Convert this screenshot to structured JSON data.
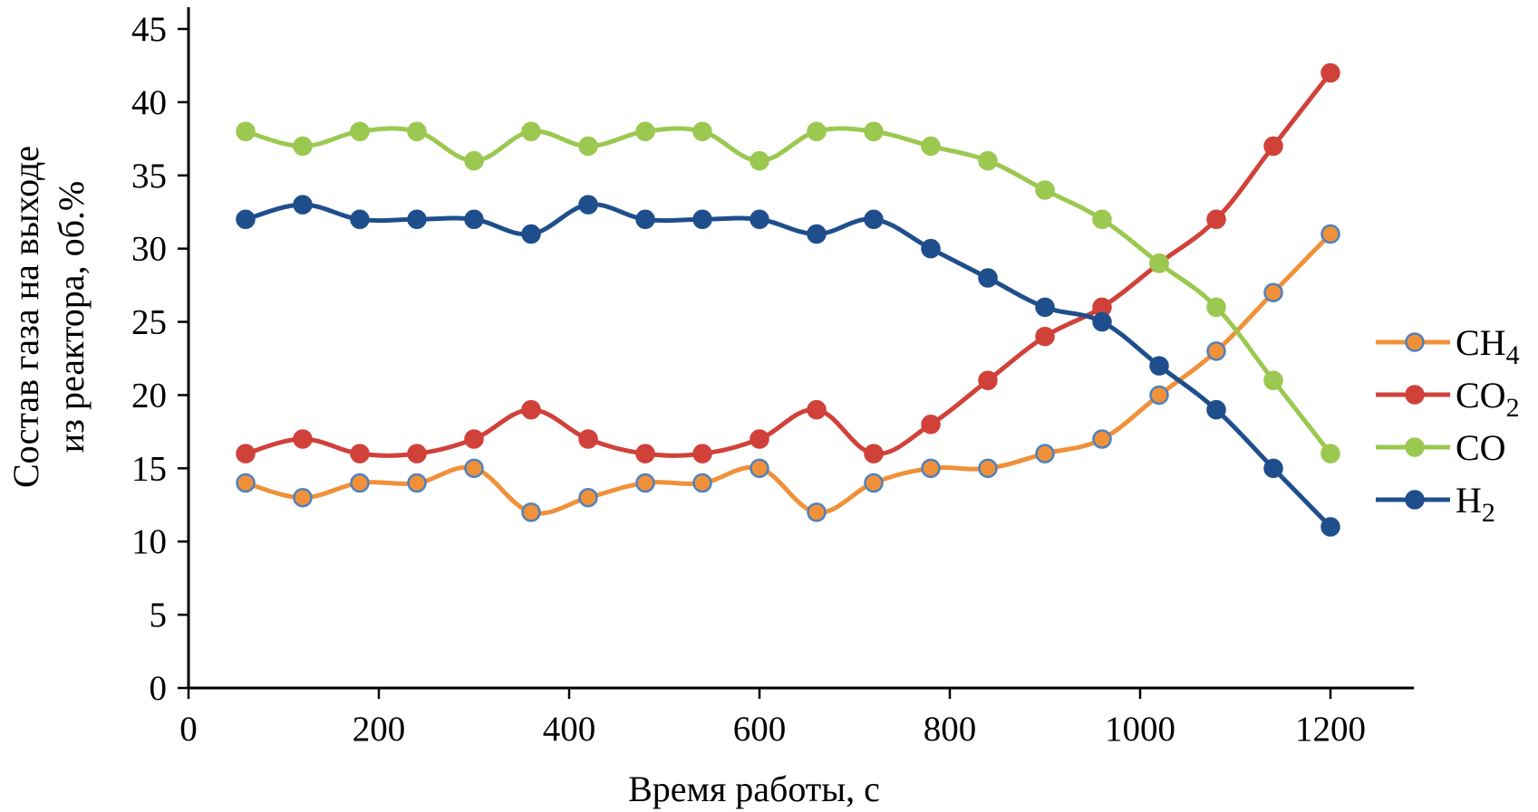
{
  "chart_data": {
    "type": "line",
    "title": "",
    "xlabel": "Время работы, с",
    "ylabel": [
      "Состав газа на выходе",
      "из реактора, об.%"
    ],
    "xlim": [
      0,
      1300
    ],
    "ylim": [
      0,
      45
    ],
    "xticks": [
      0,
      200,
      400,
      600,
      800,
      1000,
      1200
    ],
    "yticks": [
      0,
      5,
      10,
      15,
      20,
      25,
      30,
      35,
      40,
      45
    ],
    "grid": false,
    "legend_position": "right",
    "x": [
      60,
      120,
      180,
      240,
      300,
      360,
      420,
      480,
      540,
      600,
      660,
      720,
      780,
      840,
      900,
      960,
      1020,
      1080,
      1140,
      1200
    ],
    "series": [
      {
        "name": "CH",
        "subscript": "4",
        "color": "#f0913a",
        "marker_edge": "#4f81bd",
        "values": [
          14,
          13,
          14,
          14,
          15,
          12,
          13,
          14,
          14,
          15,
          12,
          14,
          15,
          15,
          16,
          17,
          20,
          23,
          27,
          31
        ]
      },
      {
        "name": "CO",
        "subscript": "2",
        "color": "#d0413a",
        "marker_edge": "#d0413a",
        "values": [
          16,
          17,
          16,
          16,
          17,
          19,
          17,
          16,
          16,
          17,
          19,
          16,
          18,
          21,
          24,
          26,
          29,
          32,
          37,
          42
        ]
      },
      {
        "name": "CO",
        "subscript": "",
        "color": "#9bc850",
        "marker_edge": "#9bc850",
        "values": [
          38,
          37,
          38,
          38,
          36,
          38,
          37,
          38,
          38,
          36,
          38,
          38,
          37,
          36,
          34,
          32,
          29,
          26,
          21,
          16
        ]
      },
      {
        "name": "H",
        "subscript": "2",
        "color": "#1f4e8c",
        "marker_edge": "#1f4e8c",
        "values": [
          32,
          33,
          32,
          32,
          32,
          31,
          33,
          32,
          32,
          32,
          31,
          32,
          30,
          28,
          26,
          25,
          22,
          19,
          15,
          11
        ]
      }
    ]
  }
}
